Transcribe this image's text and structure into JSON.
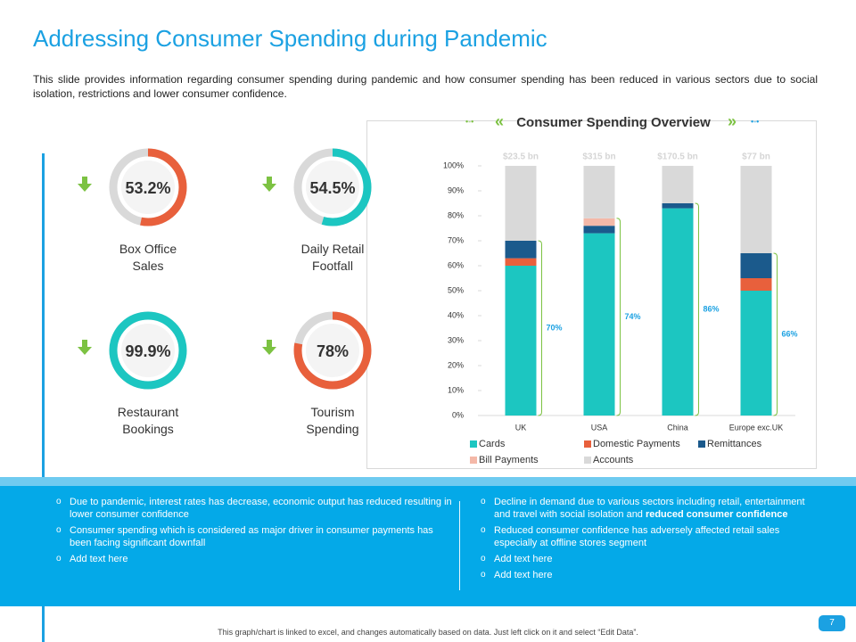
{
  "header": {
    "title": "Addressing Consumer Spending during Pandemic",
    "description": "This slide provides information regarding consumer spending during pandemic and how consumer spending has been reduced in various sectors due to social isolation, restrictions and lower consumer confidence."
  },
  "kpis": [
    {
      "value": 53.2,
      "value_label": "53.2%",
      "label": "Box Office Sales",
      "color": "#e8603c"
    },
    {
      "value": 54.5,
      "value_label": "54.5%",
      "label": "Daily Retail Footfall",
      "color": "#1cc6c1"
    },
    {
      "value": 99.9,
      "value_label": "99.9%",
      "label": "Restaurant Bookings",
      "color": "#1cc6c1"
    },
    {
      "value": 78,
      "value_label": "78%",
      "label": "Tourism Spending",
      "color": "#e8603c"
    }
  ],
  "chart_data": {
    "type": "stacked_bar",
    "title": "Consumer Spending Overview",
    "categories": [
      "UK",
      "USA",
      "China",
      "Europe exc.UK"
    ],
    "series": [
      {
        "name": "Cards",
        "color": "#1cc6c1",
        "values": [
          60,
          73,
          83,
          50
        ]
      },
      {
        "name": "Domestic Payments",
        "color": "#e8603c",
        "values": [
          3,
          0,
          0,
          5
        ]
      },
      {
        "name": "Remittances",
        "color": "#1b5a8c",
        "values": [
          7,
          3,
          2,
          10
        ]
      },
      {
        "name": "Bill Payments",
        "color": "#f4b8a8",
        "values": [
          0,
          3,
          0,
          0
        ]
      },
      {
        "name": "Accounts",
        "color": "#d9d9d9",
        "values": [
          30,
          21,
          15,
          35
        ]
      }
    ],
    "top_labels": [
      "$23.5 bn",
      "$315 bn",
      "$170.5 bn",
      "$77 bn"
    ],
    "bracket_labels": [
      "70%",
      "74%",
      "86%",
      "66%"
    ],
    "ylim": [
      0,
      100
    ],
    "yticks": [
      {
        "value": 0,
        "label": "0%"
      },
      {
        "value": 10,
        "label": "10%"
      },
      {
        "value": 20,
        "label": "20%"
      },
      {
        "value": 30,
        "label": "30%"
      },
      {
        "value": 40,
        "label": "40%"
      },
      {
        "value": 50,
        "label": "50%"
      },
      {
        "value": 60,
        "label": "60%"
      },
      {
        "value": 70,
        "label": "70%"
      },
      {
        "value": 80,
        "label": "80%"
      },
      {
        "value": 90,
        "label": "90%"
      },
      {
        "value": 100,
        "label": "100%"
      }
    ],
    "legend": "bottom"
  },
  "bullets": {
    "left": [
      {
        "text": "Due to pandemic, interest rates has decrease, economic output has reduced resulting in lower consumer confidence"
      },
      {
        "text": "Consumer spending which is considered as major driver in consumer payments has been facing significant downfall"
      },
      {
        "text": "Add text here"
      }
    ],
    "right": [
      {
        "text": "Decline in demand due to various sectors including retail, entertainment and travel with social isolation and",
        "bold": "reduced consumer confidence"
      },
      {
        "text": "Reduced consumer confidence has adversely affected retail sales especially at offline stores segment"
      },
      {
        "text": "Add text here"
      },
      {
        "text": "Add text here"
      }
    ]
  },
  "footer": {
    "note": "This graph/chart is linked to excel, and changes automatically based on data. Just left click on it and select “Edit Data”.",
    "page": "7"
  }
}
